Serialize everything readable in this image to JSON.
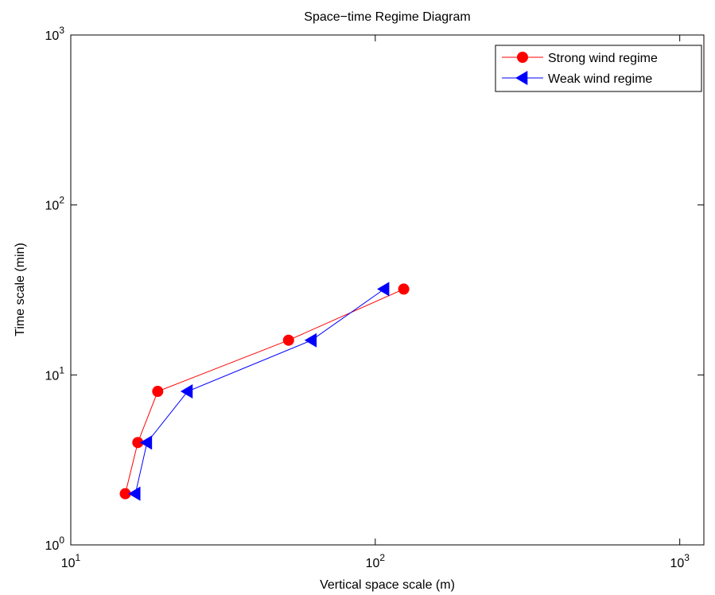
{
  "chart_data": {
    "type": "line",
    "title": "Space−time Regime Diagram",
    "x_label": "Vertical space scale (m)",
    "y_label": "Time scale (min)",
    "xscale": "log",
    "yscale": "log",
    "xlim": [
      10,
      1200
    ],
    "ylim": [
      1,
      1000
    ],
    "xticks": [
      {
        "value": 10,
        "label": "10^1"
      },
      {
        "value": 100,
        "label": "10^2"
      },
      {
        "value": 1000,
        "label": "10^3"
      }
    ],
    "yticks": [
      {
        "value": 1,
        "label": "10^0"
      },
      {
        "value": 10,
        "label": "10^1"
      },
      {
        "value": 100,
        "label": "10^2"
      },
      {
        "value": 1000,
        "label": "10^3"
      }
    ],
    "legend": "upper right",
    "series": [
      {
        "name": "Strong wind regime",
        "color": "#ff0000",
        "marker": "circle",
        "x": [
          15.1,
          16.6,
          19.3,
          51.9,
          124
        ],
        "values": [
          2,
          4,
          8,
          16,
          32
        ]
      },
      {
        "name": "Weak wind regime",
        "color": "#0000ff",
        "marker": "triangle-left",
        "x": [
          16.3,
          17.8,
          24.2,
          61.8,
          107
        ],
        "values": [
          2,
          4,
          8,
          16,
          32
        ]
      }
    ]
  }
}
